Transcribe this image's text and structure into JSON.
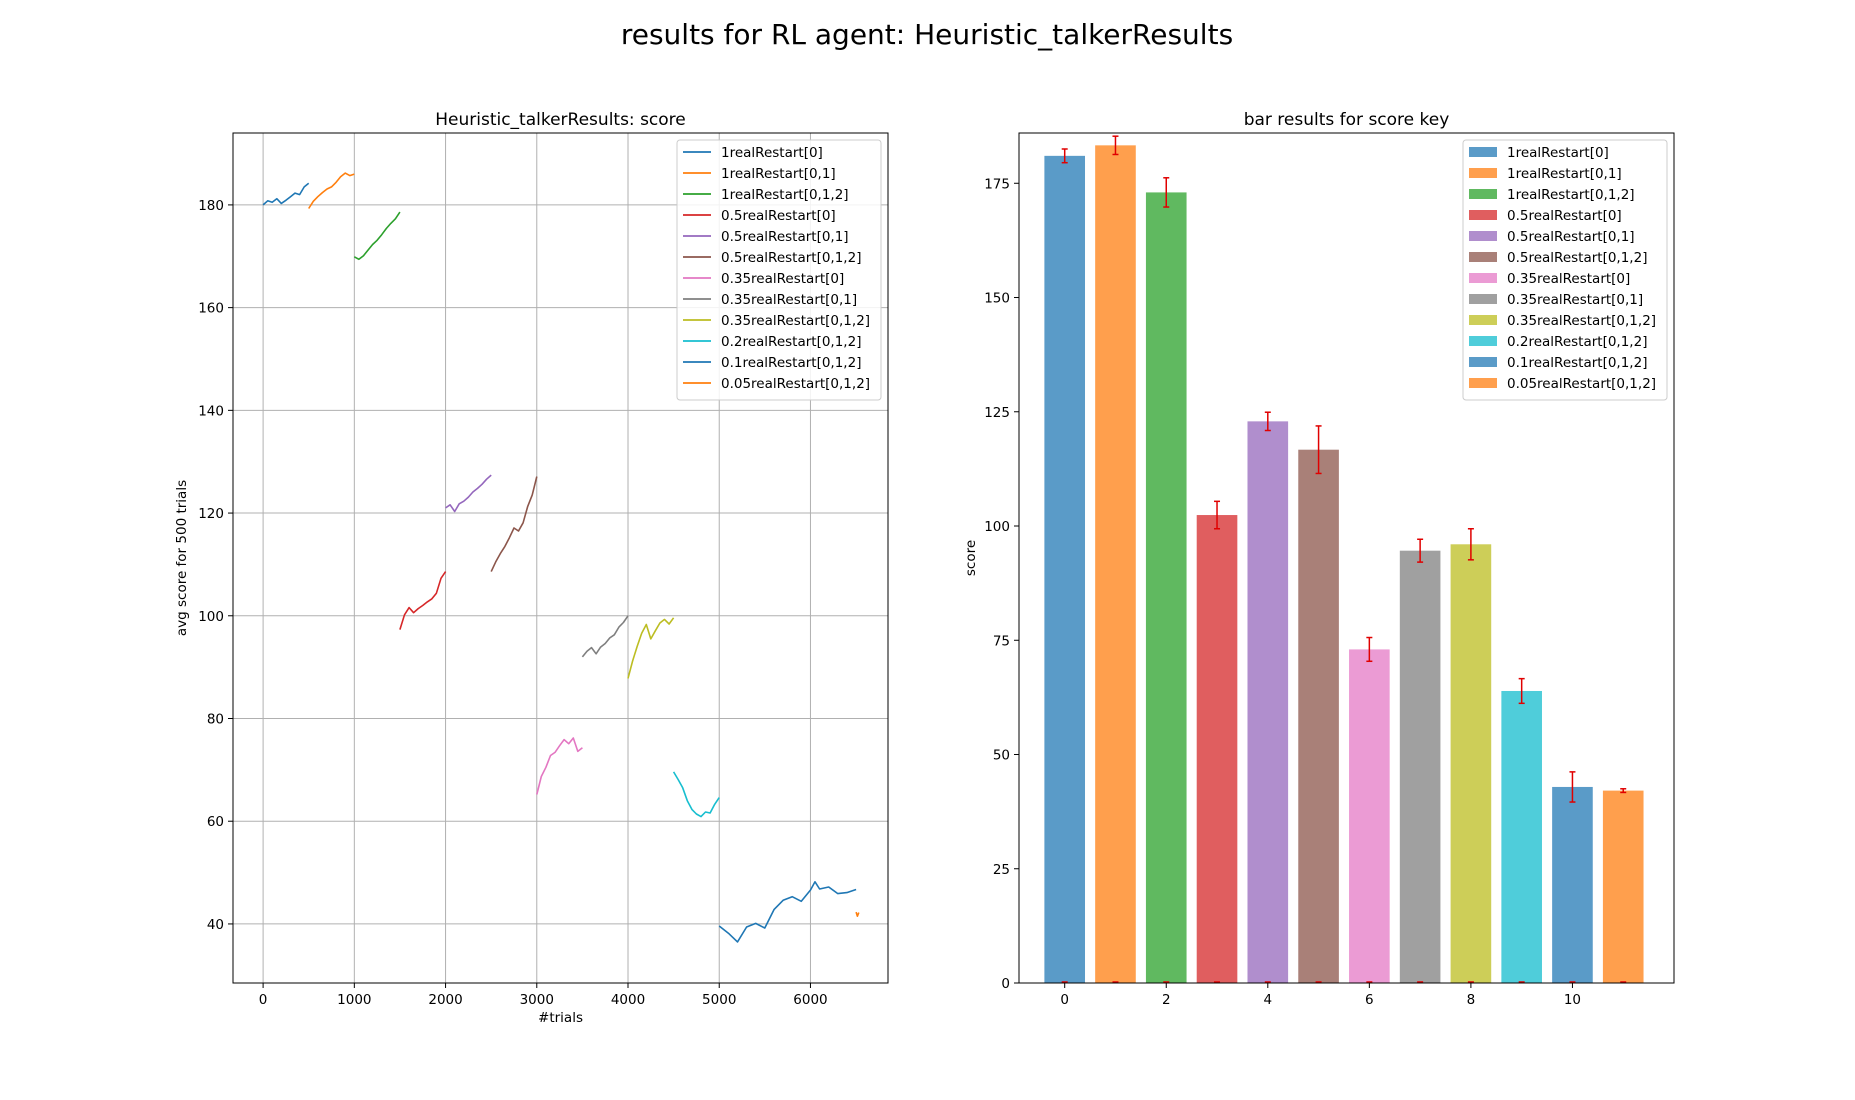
{
  "figure": {
    "suptitle": "results for RL agent: Heuristic_talkerResults"
  },
  "chart_data": [
    {
      "type": "line",
      "title": "Heuristic_talkerResults: score",
      "xlabel": "#trials",
      "ylabel": "avg score for 500 trials",
      "xlim": [
        -330,
        6850
      ],
      "ylim": [
        28.5,
        194
      ],
      "xticks": [
        0,
        1000,
        2000,
        3000,
        4000,
        5000,
        6000
      ],
      "yticks": [
        40,
        60,
        80,
        100,
        120,
        140,
        160,
        180
      ],
      "grid": true,
      "legend_position": "top-right",
      "series": [
        {
          "name": "1realRestart[0]",
          "color": "#1f77b4",
          "x": [
            0,
            50,
            100,
            150,
            200,
            250,
            300,
            350,
            400,
            450,
            500
          ],
          "y": [
            180.0,
            180.8,
            180.5,
            181.2,
            180.3,
            180.9,
            181.6,
            182.3,
            182.0,
            183.5,
            184.2
          ]
        },
        {
          "name": "1realRestart[0,1]",
          "color": "#ff7f0e",
          "x": [
            500,
            550,
            600,
            650,
            700,
            750,
            800,
            850,
            900,
            950,
            1000
          ],
          "y": [
            179.3,
            180.7,
            181.6,
            182.4,
            183.1,
            183.5,
            184.4,
            185.5,
            186.2,
            185.7,
            186.0
          ]
        },
        {
          "name": "1realRestart[0,1,2]",
          "color": "#2ca02c",
          "x": [
            1000,
            1050,
            1100,
            1150,
            1200,
            1250,
            1300,
            1350,
            1400,
            1450,
            1500
          ],
          "y": [
            169.9,
            169.4,
            170.1,
            171.2,
            172.3,
            173.1,
            174.2,
            175.4,
            176.4,
            177.3,
            178.6
          ]
        },
        {
          "name": "0.5realRestart[0]",
          "color": "#d62728",
          "x": [
            1500,
            1550,
            1600,
            1650,
            1700,
            1750,
            1800,
            1850,
            1900,
            1950,
            2000
          ],
          "y": [
            97.3,
            100.2,
            101.6,
            100.6,
            101.4,
            102.0,
            102.7,
            103.3,
            104.4,
            107.3,
            108.6
          ]
        },
        {
          "name": "0.5realRestart[0,1]",
          "color": "#9467bd",
          "x": [
            2000,
            2050,
            2100,
            2150,
            2200,
            2250,
            2300,
            2350,
            2400,
            2450,
            2500
          ],
          "y": [
            121.0,
            121.6,
            120.3,
            121.8,
            122.3,
            123.1,
            124.1,
            124.8,
            125.6,
            126.6,
            127.4
          ]
        },
        {
          "name": "0.5realRestart[0,1,2]",
          "color": "#8c564b",
          "x": [
            2500,
            2550,
            2600,
            2650,
            2700,
            2750,
            2800,
            2850,
            2900,
            2950,
            3000
          ],
          "y": [
            108.6,
            110.5,
            112.1,
            113.5,
            115.2,
            117.1,
            116.5,
            118.1,
            121.3,
            123.5,
            127.1
          ]
        },
        {
          "name": "0.35realRestart[0]",
          "color": "#e377c2",
          "x": [
            3000,
            3050,
            3100,
            3150,
            3200,
            3250,
            3300,
            3350,
            3400,
            3450,
            3500
          ],
          "y": [
            65.2,
            68.7,
            70.5,
            72.8,
            73.4,
            74.7,
            75.9,
            75.1,
            76.2,
            73.6,
            74.3
          ]
        },
        {
          "name": "0.35realRestart[0,1]",
          "color": "#7f7f7f",
          "x": [
            3500,
            3550,
            3600,
            3650,
            3700,
            3750,
            3800,
            3850,
            3900,
            3950,
            4000
          ],
          "y": [
            92.0,
            93.1,
            93.8,
            92.6,
            93.9,
            94.6,
            95.7,
            96.3,
            97.8,
            98.7,
            100.0
          ]
        },
        {
          "name": "0.35realRestart[0,1,2]",
          "color": "#bcbd22",
          "x": [
            4000,
            4050,
            4100,
            4150,
            4200,
            4250,
            4300,
            4350,
            4400,
            4450,
            4500
          ],
          "y": [
            87.8,
            91.2,
            94.0,
            96.6,
            98.3,
            95.5,
            97.1,
            98.6,
            99.3,
            98.4,
            99.6
          ]
        },
        {
          "name": "0.2realRestart[0,1,2]",
          "color": "#17becf",
          "x": [
            4500,
            4550,
            4600,
            4650,
            4700,
            4750,
            4800,
            4850,
            4900,
            4950,
            5000
          ],
          "y": [
            69.6,
            68.1,
            66.5,
            64.0,
            62.3,
            61.4,
            60.9,
            61.8,
            61.6,
            63.3,
            64.6
          ]
        },
        {
          "name": "0.1realRestart[0,1,2]",
          "color": "#1f77b4",
          "x": [
            5000,
            5100,
            5200,
            5300,
            5400,
            5500,
            5600,
            5700,
            5800,
            5900,
            6000,
            6050,
            6100,
            6200,
            6300,
            6400,
            6500
          ],
          "y": [
            39.6,
            38.2,
            36.5,
            39.4,
            40.1,
            39.2,
            42.8,
            44.6,
            45.3,
            44.4,
            46.6,
            48.2,
            46.8,
            47.2,
            45.9,
            46.1,
            46.7
          ]
        },
        {
          "name": "0.05realRestart[0,1,2]",
          "color": "#ff7f0e",
          "x": [
            6500,
            6515,
            6530
          ],
          "y": [
            42.3,
            41.5,
            42.2
          ]
        }
      ]
    },
    {
      "type": "bar",
      "title": "bar results for score key",
      "xlabel": "",
      "ylabel": "score",
      "xlim": [
        -0.9,
        12.0
      ],
      "ylim": [
        0,
        186
      ],
      "xticks": [
        0,
        2,
        4,
        6,
        8,
        10
      ],
      "yticks": [
        0,
        25,
        50,
        75,
        100,
        125,
        150,
        175
      ],
      "grid": false,
      "legend_position": "top-right",
      "errorbar_color": "#e00000",
      "bars": [
        {
          "name": "1realRestart[0]",
          "x": 0,
          "value": 181.0,
          "error": 1.5,
          "color": "#5a9bc8"
        },
        {
          "name": "1realRestart[0,1]",
          "x": 1,
          "value": 183.3,
          "error": 2.0,
          "color": "#ff9f4d"
        },
        {
          "name": "1realRestart[0,1,2]",
          "x": 2,
          "value": 173.0,
          "error": 3.2,
          "color": "#60b960"
        },
        {
          "name": "0.5realRestart[0]",
          "x": 3,
          "value": 102.4,
          "error": 3.0,
          "color": "#e05e5f"
        },
        {
          "name": "0.5realRestart[0,1]",
          "x": 4,
          "value": 122.9,
          "error": 2.0,
          "color": "#b08ecd"
        },
        {
          "name": "0.5realRestart[0,1,2]",
          "x": 5,
          "value": 116.7,
          "error": 5.2,
          "color": "#a98078"
        },
        {
          "name": "0.35realRestart[0]",
          "x": 6,
          "value": 73.0,
          "error": 2.6,
          "color": "#eb9bd4"
        },
        {
          "name": "0.35realRestart[0,1]",
          "x": 7,
          "value": 94.6,
          "error": 2.5,
          "color": "#a0a0a0"
        },
        {
          "name": "0.35realRestart[0,1,2]",
          "x": 8,
          "value": 96.0,
          "error": 3.4,
          "color": "#cdce58"
        },
        {
          "name": "0.2realRestart[0,1,2]",
          "x": 9,
          "value": 63.9,
          "error": 2.7,
          "color": "#4fcdda"
        },
        {
          "name": "0.1realRestart[0,1,2]",
          "x": 10,
          "value": 42.9,
          "error": 3.3,
          "color": "#5a9bc8"
        },
        {
          "name": "0.05realRestart[0,1,2]",
          "x": 11,
          "value": 42.1,
          "error": 0.4,
          "color": "#ff9f4d"
        }
      ]
    }
  ]
}
